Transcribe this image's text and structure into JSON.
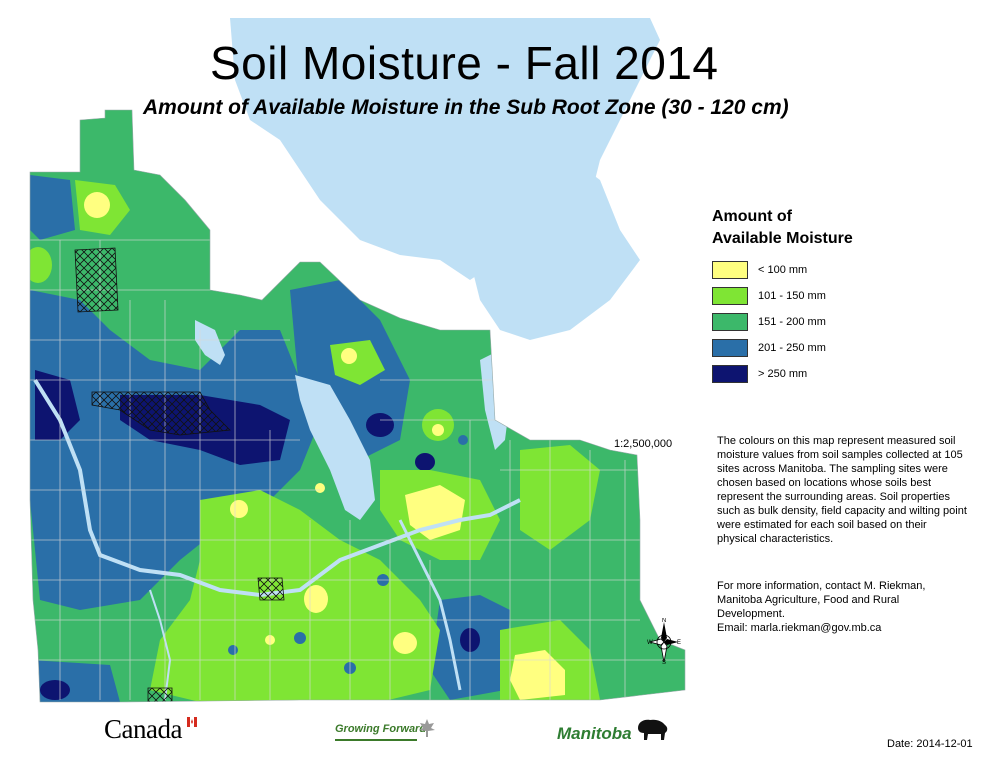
{
  "title": "Soil Moisture - Fall 2014",
  "subtitle": "Amount of Available Moisture in the Sub Root Zone (30 - 120 cm)",
  "legend": {
    "title_line1": "Amount of",
    "title_line2": "Available Moisture",
    "items": [
      {
        "label": "< 100 mm",
        "color": "#ffff80"
      },
      {
        "label": "101 - 150 mm",
        "color": "#7fe534"
      },
      {
        "label": "151 - 200 mm",
        "color": "#3cb86a"
      },
      {
        "label": "201 - 250 mm",
        "color": "#2a6fa8"
      },
      {
        "label": "> 250 mm",
        "color": "#0d1470"
      }
    ]
  },
  "scale": "1:2,500,000",
  "description": "The colours on this map represent measured soil moisture values from soil samples collected at 105 sites across Manitoba.  The sampling sites were chosen based on locations whose soils best represent the surrounding areas.  Soil properties such as bulk density, field capacity and wilting point were estimated for each soil based on their physical characteristics.",
  "contact": {
    "line1": "For more information, contact M. Riekman,",
    "line2": "Manitoba Agriculture, Food and Rural",
    "line3": "Development.",
    "line4": "Email: marla.riekman@gov.mb.ca"
  },
  "date": "Date: 2014-12-01",
  "logos": {
    "canada": "Canada",
    "growing_forward": "Growing Forward",
    "manitoba": "Manitoba"
  },
  "compass": {
    "n": "N",
    "s": "S",
    "e": "E",
    "w": "W"
  },
  "colors": {
    "water": "#bfe0f5",
    "very_dry": "#ffff80",
    "dry": "#7fe534",
    "moderate": "#3cb86a",
    "wet": "#2a6fa8",
    "very_wet": "#0d1470"
  }
}
